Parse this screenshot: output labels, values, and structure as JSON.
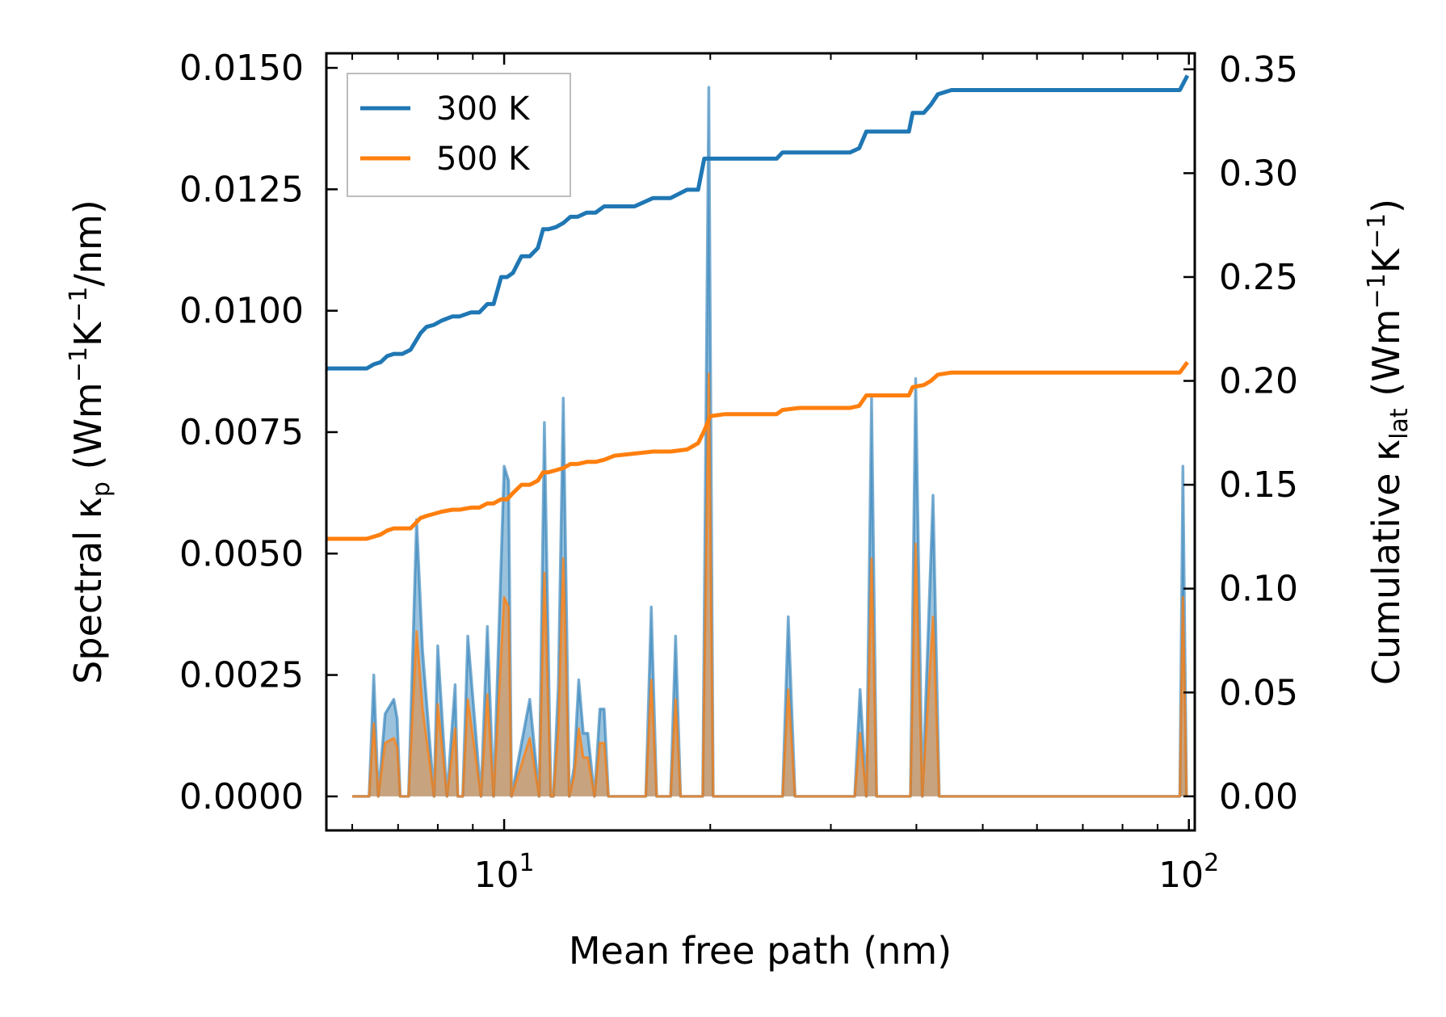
{
  "chart_data": {
    "type": "line",
    "xscale": "log",
    "xlim": [
      5.5,
      102
    ],
    "xlabel": "Mean free path (nm)",
    "ylabel_left": {
      "prefix": "Spectral κ",
      "sub": "p",
      "unit_open": " (Wm",
      "sup1": "−1",
      "mid": "K",
      "sup2": "−1",
      "unit_close": "/nm)"
    },
    "ylabel_right": {
      "prefix": "Cumulative κ",
      "sub": "lat",
      "unit_open": " (Wm",
      "sup1": "−1",
      "mid": "K",
      "sup2": "−1",
      "unit_close": ")"
    },
    "ylim_left": [
      -0.0007,
      0.0153
    ],
    "ylim_right": [
      -0.0164,
      0.3577
    ],
    "xticks": [
      {
        "value": 10,
        "base": "10",
        "exp": "1"
      },
      {
        "value": 100,
        "base": "10",
        "exp": "2"
      }
    ],
    "yticks_left": [
      "0.0000",
      "0.0025",
      "0.0050",
      "0.0075",
      "0.0100",
      "0.0125",
      "0.0150"
    ],
    "yticks_left_values": [
      0,
      0.0025,
      0.005,
      0.0075,
      0.01,
      0.0125,
      0.015
    ],
    "yticks_right": [
      "0.00",
      "0.05",
      "0.10",
      "0.15",
      "0.20",
      "0.25",
      "0.30",
      "0.35"
    ],
    "yticks_right_values": [
      0,
      0.05,
      0.1,
      0.15,
      0.2,
      0.25,
      0.3,
      0.35
    ],
    "legend": {
      "position": "upper-left",
      "entries": [
        "300 K",
        "500 K"
      ]
    },
    "colors": {
      "300K": "#1f77b4",
      "500K": "#ff7f0e",
      "fill": "#c8a27a"
    },
    "spectral_300K": {
      "x": [
        6.0,
        6.35,
        6.45,
        6.55,
        6.7,
        6.9,
        6.98,
        7.05,
        7.25,
        7.45,
        7.6,
        7.9,
        8.0,
        8.25,
        8.48,
        8.56,
        8.7,
        8.85,
        9.25,
        9.45,
        9.65,
        10.0,
        10.15,
        10.25,
        10.9,
        11.25,
        11.45,
        11.7,
        11.8,
        12.0,
        12.2,
        12.45,
        12.65,
        12.85,
        13.05,
        13.25,
        13.55,
        13.8,
        14.0,
        14.2,
        14.5,
        16.1,
        16.4,
        16.7,
        17.5,
        17.8,
        18.1,
        19.5,
        19.9,
        20.2,
        25.5,
        26.0,
        26.6,
        32.5,
        33.1,
        33.8,
        34.4,
        35.0,
        39.2,
        39.9,
        40.8,
        42.3,
        43.2,
        44.2,
        47.5,
        97.0,
        98.0,
        99.2
      ],
      "y": [
        0.0,
        0.0,
        0.0025,
        0.0,
        0.0017,
        0.002,
        0.0016,
        0.0,
        0.0,
        0.0057,
        0.003,
        0.0,
        0.0031,
        0.0,
        0.0023,
        0.0,
        0.0,
        0.0033,
        0.0,
        0.0035,
        0.0,
        0.0068,
        0.0065,
        0.0,
        0.002,
        0.0,
        0.0077,
        0.0,
        0.0,
        0.0023,
        0.0082,
        0.0,
        0.0006,
        0.0024,
        0.0013,
        0.0013,
        0.0,
        0.0018,
        0.0018,
        0.0,
        0.0,
        0.0,
        0.0039,
        0.0,
        0.0,
        0.0033,
        0.0,
        0.0,
        0.0146,
        0.0,
        0.0,
        0.0037,
        0.0,
        0.0,
        0.0022,
        0.0,
        0.0082,
        0.0,
        0.0,
        0.0086,
        0.0,
        0.0062,
        0.0,
        0.0,
        0.0,
        0.0,
        0.0068,
        0.0
      ]
    },
    "spectral_500K": {
      "x": [
        6.0,
        6.35,
        6.45,
        6.55,
        6.7,
        6.9,
        6.98,
        7.05,
        7.25,
        7.45,
        7.6,
        7.9,
        8.0,
        8.25,
        8.48,
        8.56,
        8.7,
        8.85,
        9.25,
        9.45,
        9.65,
        10.0,
        10.15,
        10.25,
        10.9,
        11.25,
        11.45,
        11.7,
        11.8,
        12.0,
        12.2,
        12.45,
        12.65,
        12.85,
        13.05,
        13.25,
        13.55,
        13.8,
        14.0,
        14.2,
        14.5,
        16.1,
        16.4,
        16.7,
        17.5,
        17.8,
        18.1,
        19.5,
        19.9,
        20.2,
        25.5,
        26.0,
        26.6,
        32.5,
        33.1,
        33.8,
        34.4,
        35.0,
        39.2,
        39.9,
        40.8,
        42.3,
        43.2,
        44.2,
        47.5,
        97.0,
        98.0,
        99.2
      ],
      "y": [
        0.0,
        0.0,
        0.0015,
        0.0,
        0.0011,
        0.0012,
        0.001,
        0.0,
        0.0,
        0.0034,
        0.0018,
        0.0,
        0.0019,
        0.0,
        0.0014,
        0.0,
        0.0,
        0.002,
        0.0,
        0.0021,
        0.0,
        0.0041,
        0.0039,
        0.0,
        0.0012,
        0.0,
        0.0046,
        0.0,
        0.0,
        0.0014,
        0.0049,
        0.0,
        0.0004,
        0.0014,
        0.0008,
        0.0008,
        0.0,
        0.0011,
        0.0011,
        0.0,
        0.0,
        0.0,
        0.0024,
        0.0,
        0.0,
        0.002,
        0.0,
        0.0,
        0.0087,
        0.0,
        0.0,
        0.0022,
        0.0,
        0.0,
        0.0013,
        0.0,
        0.0049,
        0.0,
        0.0,
        0.0052,
        0.0,
        0.0037,
        0.0,
        0.0,
        0.0,
        0.0,
        0.0041,
        0.0
      ]
    },
    "cumulative_300K": {
      "x": [
        5.5,
        6.0,
        6.3,
        6.45,
        6.6,
        6.75,
        6.9,
        7.1,
        7.3,
        7.55,
        7.7,
        7.9,
        8.1,
        8.4,
        8.6,
        8.95,
        9.2,
        9.45,
        9.65,
        9.9,
        10.1,
        10.3,
        10.6,
        10.9,
        11.2,
        11.4,
        11.6,
        11.9,
        12.2,
        12.5,
        12.8,
        13.2,
        13.6,
        14.0,
        14.5,
        15.5,
        16.5,
        17.5,
        18.5,
        19.2,
        19.6,
        20.0,
        21.0,
        23.0,
        25.0,
        25.5,
        27.0,
        30.0,
        32.0,
        33.0,
        33.8,
        34.3,
        37.0,
        39.0,
        39.5,
        41.0,
        42.0,
        43.0,
        45.0,
        60.0,
        80.0,
        95.0,
        97.0,
        99.5
      ],
      "y": [
        0.206,
        0.206,
        0.206,
        0.208,
        0.209,
        0.212,
        0.213,
        0.213,
        0.215,
        0.223,
        0.226,
        0.227,
        0.229,
        0.231,
        0.231,
        0.233,
        0.233,
        0.237,
        0.237,
        0.25,
        0.25,
        0.252,
        0.26,
        0.26,
        0.264,
        0.273,
        0.273,
        0.274,
        0.276,
        0.279,
        0.279,
        0.281,
        0.281,
        0.284,
        0.284,
        0.284,
        0.288,
        0.288,
        0.292,
        0.292,
        0.307,
        0.307,
        0.307,
        0.307,
        0.307,
        0.31,
        0.31,
        0.31,
        0.31,
        0.312,
        0.32,
        0.32,
        0.32,
        0.32,
        0.329,
        0.329,
        0.333,
        0.338,
        0.34,
        0.34,
        0.34,
        0.34,
        0.34,
        0.347
      ]
    },
    "cumulative_500K": {
      "x": [
        5.5,
        6.0,
        6.3,
        6.45,
        6.6,
        6.75,
        6.9,
        7.1,
        7.3,
        7.55,
        7.7,
        7.9,
        8.1,
        8.4,
        8.6,
        8.95,
        9.2,
        9.45,
        9.65,
        9.9,
        10.1,
        10.3,
        10.6,
        10.9,
        11.2,
        11.4,
        11.6,
        11.9,
        12.2,
        12.5,
        12.8,
        13.2,
        13.6,
        14.0,
        14.5,
        15.5,
        16.5,
        17.5,
        18.5,
        19.2,
        19.6,
        20.0,
        21.0,
        23.0,
        25.0,
        25.5,
        27.0,
        30.0,
        32.0,
        33.0,
        33.8,
        34.3,
        37.0,
        39.0,
        39.5,
        41.0,
        42.0,
        43.0,
        45.0,
        60.0,
        80.0,
        95.0,
        97.0,
        99.5
      ],
      "y": [
        0.124,
        0.124,
        0.124,
        0.125,
        0.126,
        0.128,
        0.129,
        0.129,
        0.129,
        0.134,
        0.135,
        0.136,
        0.137,
        0.138,
        0.138,
        0.139,
        0.139,
        0.141,
        0.141,
        0.143,
        0.143,
        0.146,
        0.15,
        0.15,
        0.152,
        0.156,
        0.156,
        0.157,
        0.158,
        0.16,
        0.16,
        0.161,
        0.161,
        0.162,
        0.164,
        0.165,
        0.166,
        0.166,
        0.167,
        0.17,
        0.176,
        0.183,
        0.184,
        0.184,
        0.184,
        0.186,
        0.187,
        0.187,
        0.187,
        0.188,
        0.193,
        0.193,
        0.193,
        0.193,
        0.197,
        0.198,
        0.2,
        0.203,
        0.204,
        0.204,
        0.204,
        0.204,
        0.204,
        0.209
      ]
    }
  }
}
